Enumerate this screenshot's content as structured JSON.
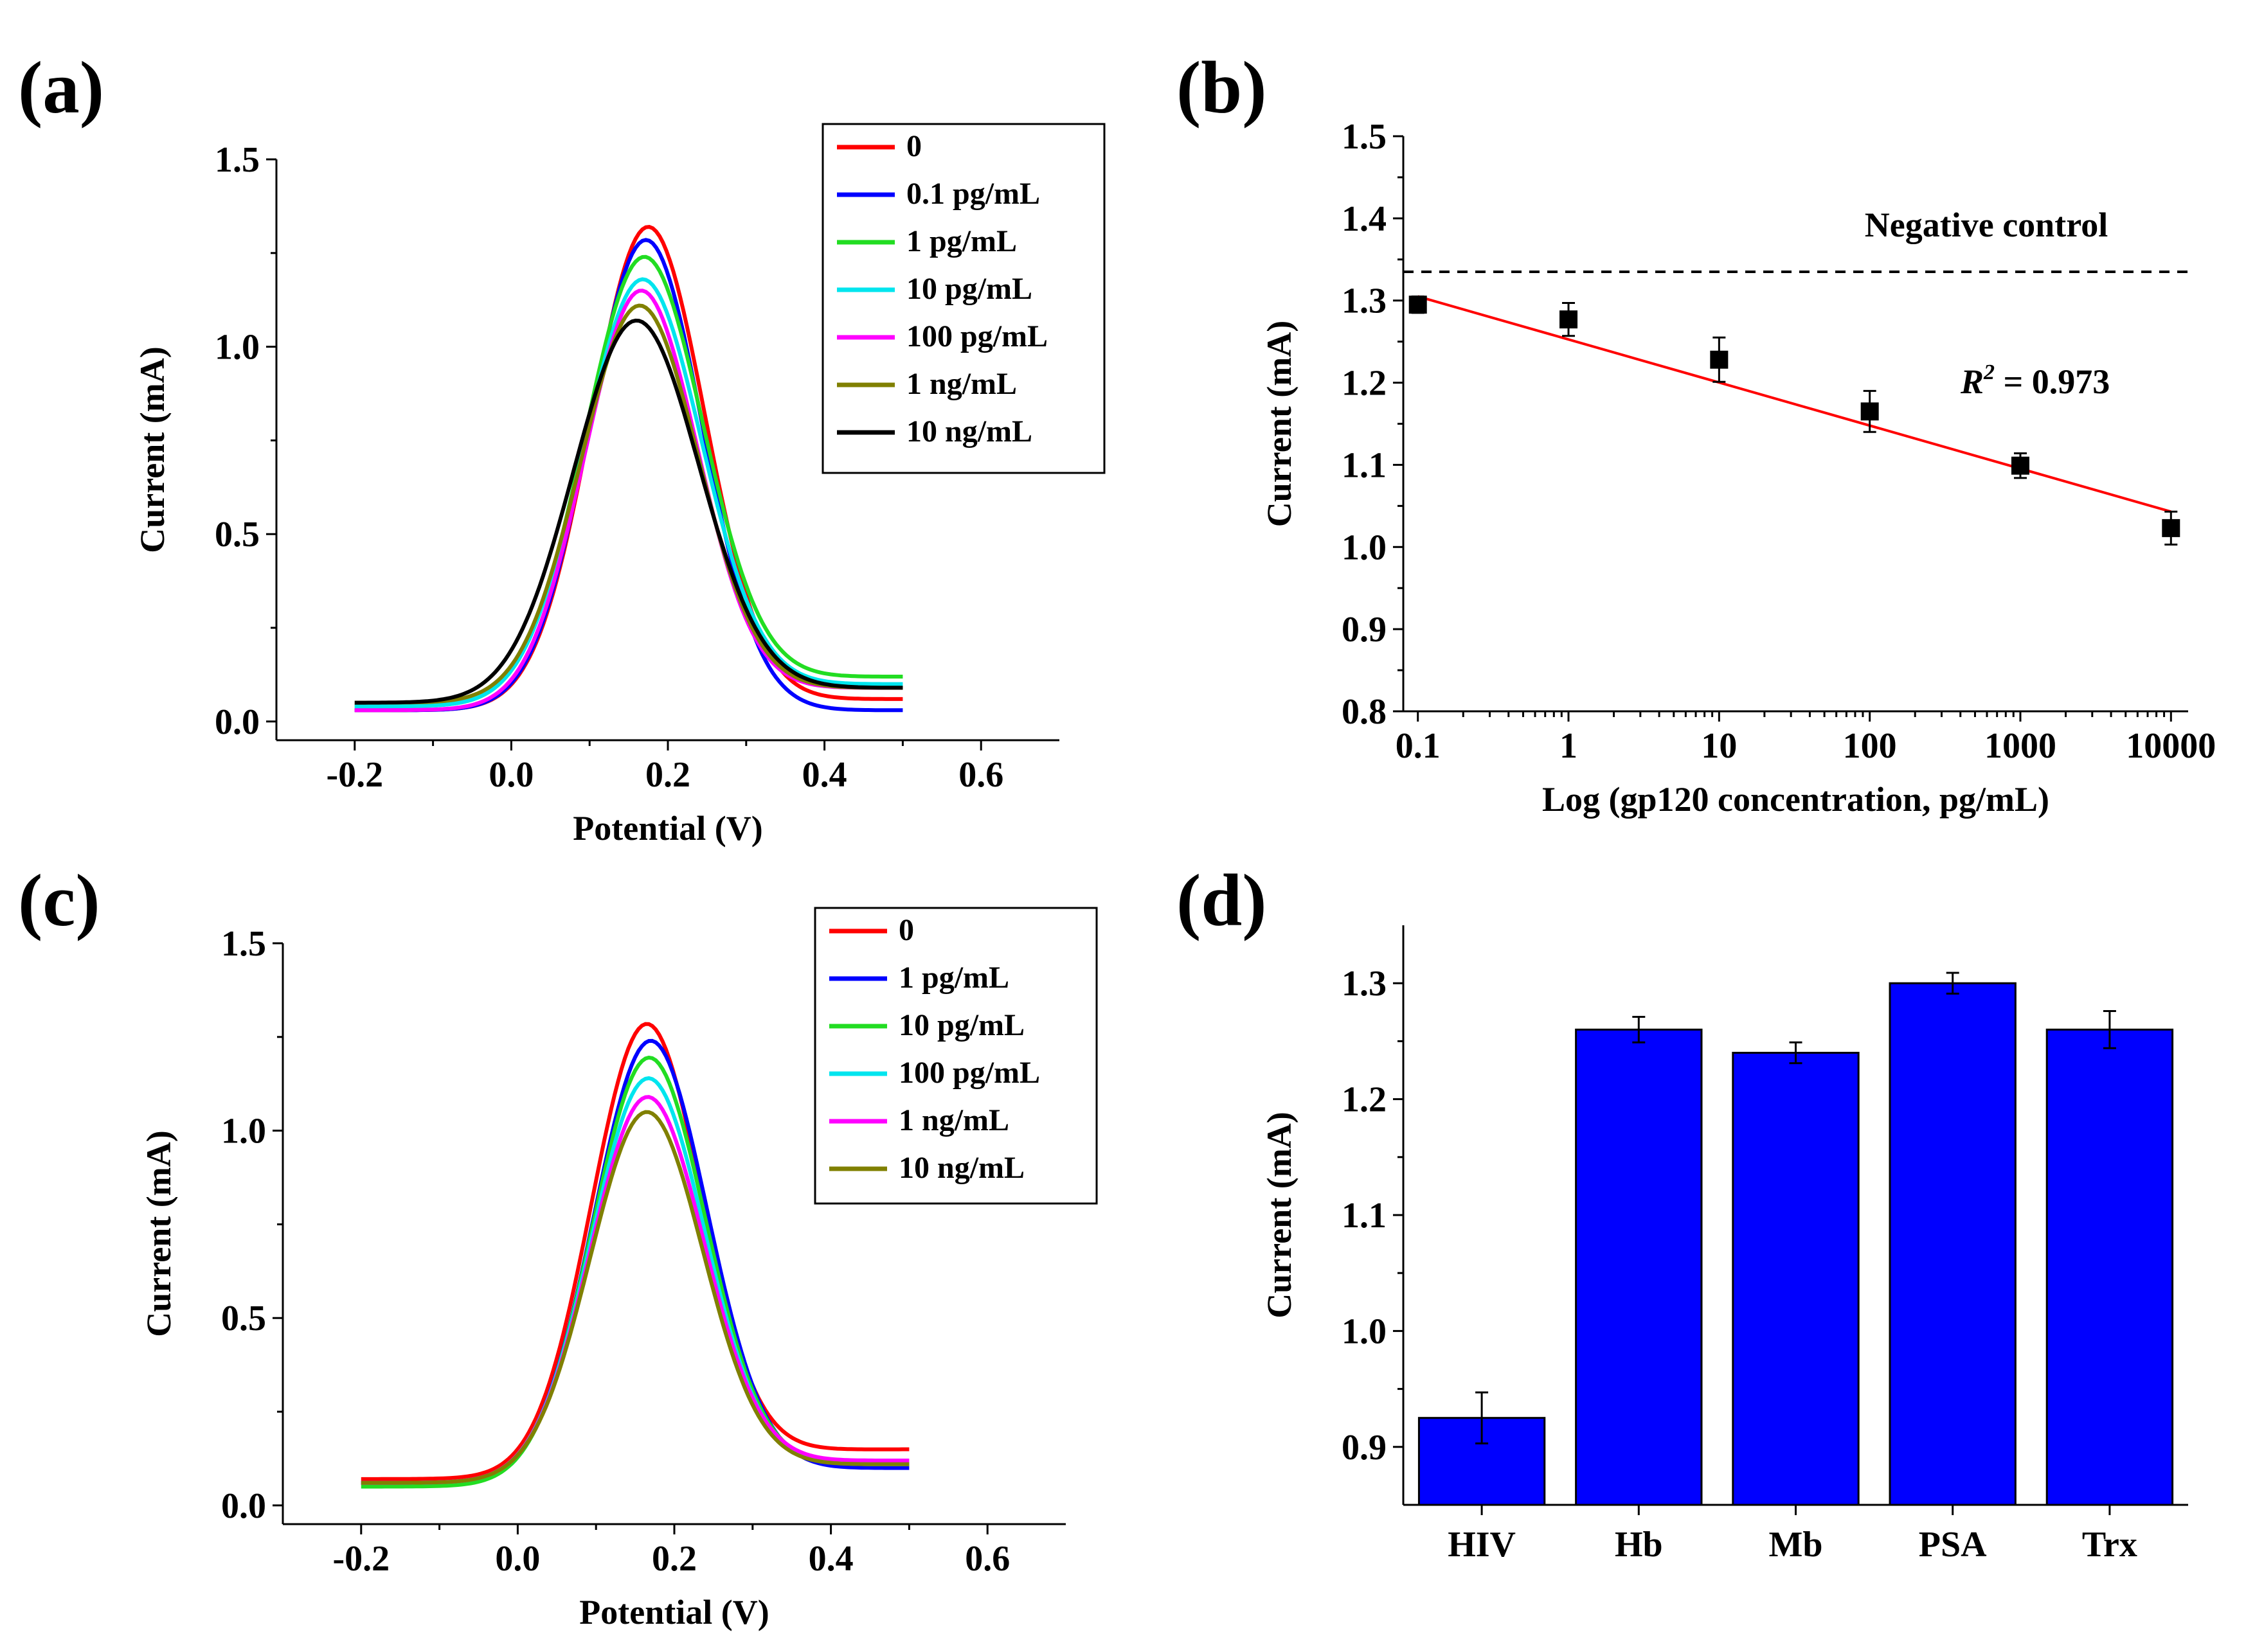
{
  "figure_labels": [
    "(a)",
    "(b)",
    "(c)",
    "(d)"
  ],
  "colors": {
    "red": "#ff0000",
    "blue": "#0000ff",
    "green": "#22dd22",
    "cyan": "#00e5ee",
    "magenta": "#ff00ff",
    "olive": "#808000",
    "black": "#000000",
    "bar_fill": "#0000ff"
  },
  "chart_data": [
    {
      "id": "a",
      "type": "line",
      "title": "",
      "xlabel": "Potential (V)",
      "ylabel": "Current (mA)",
      "xlim": [
        -0.3,
        0.7
      ],
      "ylim": [
        -0.05,
        1.5
      ],
      "xticks": [
        -0.2,
        0.0,
        0.2,
        0.4,
        0.6
      ],
      "xtick_labels": [
        "-0.2",
        "0.0",
        "0.2",
        "0.4",
        "0.6"
      ],
      "yticks": [
        0.0,
        0.5,
        1.0,
        1.5
      ],
      "ytick_labels": [
        "0.0",
        "0.5",
        "1.0",
        "1.5"
      ],
      "legend": "top-right",
      "x_range": [
        -0.2,
        0.5
      ],
      "series": [
        {
          "name": "0",
          "color": "red",
          "peak": 1.32,
          "peak_x": 0.175,
          "base_left": 0.03,
          "base_right": 0.06,
          "width": 0.072
        },
        {
          "name": "0.1 pg/mL",
          "color": "blue",
          "peak": 1.285,
          "peak_x": 0.172,
          "base_left": 0.03,
          "base_right": 0.03,
          "width": 0.072
        },
        {
          "name": "1 pg/mL",
          "color": "green",
          "peak": 1.24,
          "peak_x": 0.17,
          "base_left": 0.04,
          "base_right": 0.12,
          "width": 0.075
        },
        {
          "name": "10 pg/mL",
          "color": "cyan",
          "peak": 1.18,
          "peak_x": 0.168,
          "base_left": 0.04,
          "base_right": 0.1,
          "width": 0.075
        },
        {
          "name": "100 pg/mL",
          "color": "magenta",
          "peak": 1.15,
          "peak_x": 0.166,
          "base_left": 0.03,
          "base_right": 0.09,
          "width": 0.072
        },
        {
          "name": "1 ng/mL",
          "color": "olive",
          "peak": 1.11,
          "peak_x": 0.164,
          "base_left": 0.05,
          "base_right": 0.09,
          "width": 0.075
        },
        {
          "name": "10 ng/mL",
          "color": "black",
          "peak": 1.07,
          "peak_x": 0.16,
          "base_left": 0.05,
          "base_right": 0.09,
          "width": 0.08
        }
      ]
    },
    {
      "id": "b",
      "type": "scatter",
      "title": "",
      "xlabel": "Log (gp120 concentration, pg/mL)",
      "ylabel": "Current (mA)",
      "xscale": "log",
      "xlim": [
        0.08,
        13000
      ],
      "ylim": [
        0.8,
        1.5
      ],
      "xticks": [
        0.1,
        1,
        10,
        100,
        1000,
        10000
      ],
      "xtick_labels": [
        "0.1",
        "1",
        "10",
        "100",
        "1000",
        "10000"
      ],
      "yticks": [
        0.8,
        0.9,
        1.0,
        1.1,
        1.2,
        1.3,
        1.4,
        1.5
      ],
      "ytick_labels": [
        "0.8",
        "0.9",
        "1.0",
        "1.1",
        "1.2",
        "1.3",
        "1.4",
        "1.5"
      ],
      "points": [
        {
          "x": 0.1,
          "y": 1.295,
          "err": 0.01
        },
        {
          "x": 1,
          "y": 1.277,
          "err": 0.02
        },
        {
          "x": 10,
          "y": 1.228,
          "err": 0.027
        },
        {
          "x": 100,
          "y": 1.165,
          "err": 0.025
        },
        {
          "x": 1000,
          "y": 1.099,
          "err": 0.015
        },
        {
          "x": 10000,
          "y": 1.023,
          "err": 0.02
        }
      ],
      "fit": {
        "x": [
          0.1,
          10000
        ],
        "y": [
          1.305,
          1.043
        ],
        "color": "red"
      },
      "negative_control": {
        "y": 1.335,
        "label": "Negative control"
      },
      "r2_label": {
        "symbol": "R",
        "sup": "2",
        "text": " = 0.973"
      }
    },
    {
      "id": "c",
      "type": "line",
      "title": "",
      "xlabel": "Potential (V)",
      "ylabel": "Current (mA)",
      "xlim": [
        -0.3,
        0.7
      ],
      "ylim": [
        -0.05,
        1.5
      ],
      "xticks": [
        -0.2,
        0.0,
        0.2,
        0.4,
        0.6
      ],
      "xtick_labels": [
        "-0.2",
        "0.0",
        "0.2",
        "0.4",
        "0.6"
      ],
      "yticks": [
        0.0,
        0.5,
        1.0,
        1.5
      ],
      "ytick_labels": [
        "0.0",
        "0.5",
        "1.0",
        "1.5"
      ],
      "legend": "top-right",
      "x_range": [
        -0.2,
        0.5
      ],
      "series": [
        {
          "name": "0",
          "color": "red",
          "peak": 1.285,
          "peak_x": 0.165,
          "base_left": 0.07,
          "base_right": 0.15,
          "width": 0.07
        },
        {
          "name": "1 pg/mL",
          "color": "blue",
          "peak": 1.24,
          "peak_x": 0.17,
          "base_left": 0.06,
          "base_right": 0.1,
          "width": 0.072
        },
        {
          "name": "10 pg/mL",
          "color": "green",
          "peak": 1.195,
          "peak_x": 0.168,
          "base_left": 0.05,
          "base_right": 0.11,
          "width": 0.072
        },
        {
          "name": "100 pg/mL",
          "color": "cyan",
          "peak": 1.14,
          "peak_x": 0.167,
          "base_left": 0.06,
          "base_right": 0.11,
          "width": 0.072
        },
        {
          "name": "1 ng/mL",
          "color": "magenta",
          "peak": 1.09,
          "peak_x": 0.166,
          "base_left": 0.06,
          "base_right": 0.12,
          "width": 0.072
        },
        {
          "name": "10 ng/mL",
          "color": "olive",
          "peak": 1.05,
          "peak_x": 0.165,
          "base_left": 0.06,
          "base_right": 0.11,
          "width": 0.072
        }
      ]
    },
    {
      "id": "d",
      "type": "bar",
      "title": "",
      "xlabel": "",
      "ylabel": "Current (mA)",
      "ylim": [
        0.85,
        1.35
      ],
      "yticks": [
        0.9,
        1.0,
        1.1,
        1.2,
        1.3
      ],
      "ytick_labels": [
        "0.9",
        "1.0",
        "1.1",
        "1.2",
        "1.3"
      ],
      "categories": [
        "HIV",
        "Hb",
        "Mb",
        "PSA",
        "Trx"
      ],
      "values": [
        0.925,
        1.26,
        1.24,
        1.3,
        1.26
      ],
      "errors": [
        0.022,
        0.011,
        0.009,
        0.009,
        0.016
      ],
      "color": "bar_fill"
    }
  ]
}
